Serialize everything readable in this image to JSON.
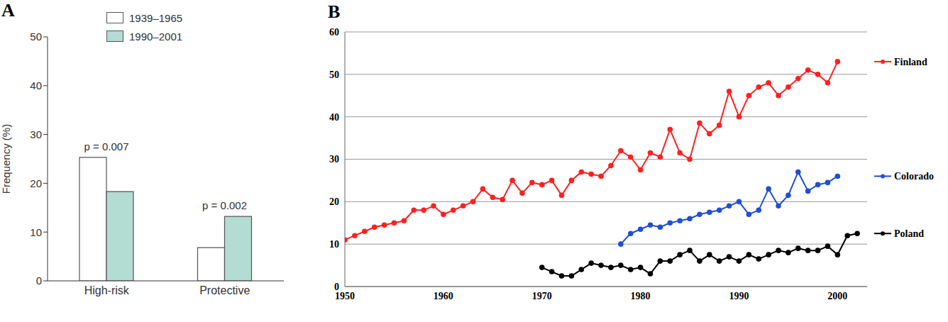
{
  "chart_data": [
    {
      "type": "bar",
      "title": "A",
      "categories": [
        "High-risk",
        "Protective"
      ],
      "series": [
        {
          "name": "1939–1965",
          "color": "#ffffff",
          "values": [
            25.3,
            6.8
          ]
        },
        {
          "name": "1990–2001",
          "color": "#b3dcd3",
          "values": [
            18.3,
            13.2
          ]
        }
      ],
      "y_label": "Frequency (%)",
      "ylim": [
        0,
        50
      ],
      "yticks": [
        0,
        10,
        20,
        30,
        40,
        50
      ],
      "annotations": [
        "p = 0.007",
        "p = 0.002"
      ],
      "legend": "top",
      "grid": false
    },
    {
      "type": "line",
      "title": "B",
      "x": [
        1950,
        1951,
        1952,
        1953,
        1954,
        1955,
        1956,
        1957,
        1958,
        1959,
        1960,
        1961,
        1962,
        1963,
        1964,
        1965,
        1966,
        1967,
        1968,
        1969,
        1970,
        1971,
        1972,
        1973,
        1974,
        1975,
        1976,
        1977,
        1978,
        1979,
        1980,
        1981,
        1982,
        1983,
        1984,
        1985,
        1986,
        1987,
        1988,
        1989,
        1990,
        1991,
        1992,
        1993,
        1994,
        1995,
        1996,
        1997,
        1998,
        1999,
        2000,
        2001,
        2002
      ],
      "series": [
        {
          "name": "Finland",
          "color": "#ff2020",
          "values": [
            11,
            12,
            13,
            14,
            14.5,
            15,
            15.5,
            18,
            18,
            19,
            17,
            18,
            19,
            20,
            23,
            21,
            20.5,
            25,
            22,
            24.5,
            24,
            25,
            21.5,
            25,
            27,
            26.5,
            26,
            28.5,
            32,
            30.5,
            27.5,
            31.5,
            30.5,
            37,
            31.5,
            30,
            38.5,
            36,
            38,
            46,
            40,
            45,
            47,
            48,
            45,
            47,
            49,
            51,
            50,
            48,
            53,
            null,
            null
          ]
        },
        {
          "name": "Colorado",
          "color": "#1f4fd6",
          "values": [
            null,
            null,
            null,
            null,
            null,
            null,
            null,
            null,
            null,
            null,
            null,
            null,
            null,
            null,
            null,
            null,
            null,
            null,
            null,
            null,
            null,
            null,
            null,
            null,
            null,
            null,
            null,
            null,
            10,
            12.5,
            13.5,
            14.5,
            14,
            15,
            15.5,
            16,
            17,
            17.5,
            18,
            19,
            20,
            17,
            18,
            23,
            19,
            21.5,
            27,
            22.5,
            24,
            24.5,
            26,
            null,
            null
          ]
        },
        {
          "name": "Poland",
          "color": "#000000",
          "values": [
            null,
            null,
            null,
            null,
            null,
            null,
            null,
            null,
            null,
            null,
            null,
            null,
            null,
            null,
            null,
            null,
            null,
            null,
            null,
            null,
            4.5,
            3.5,
            2.5,
            2.5,
            4,
            5.5,
            5,
            4.5,
            5,
            4,
            4.5,
            3,
            6,
            6,
            7.5,
            8.5,
            6,
            7.5,
            6,
            7,
            6,
            7.5,
            6.5,
            7.5,
            8.5,
            8,
            9,
            8.5,
            8.5,
            9.5,
            7.5,
            12,
            12.5
          ]
        }
      ],
      "xlim": [
        1950,
        2003
      ],
      "xticks": [
        1950,
        1960,
        1970,
        1980,
        1990,
        2000
      ],
      "ylim": [
        0,
        60
      ],
      "yticks": [
        0,
        10,
        20,
        30,
        40,
        50,
        60
      ],
      "grid": true,
      "legend": "right",
      "marker": "circle"
    }
  ]
}
